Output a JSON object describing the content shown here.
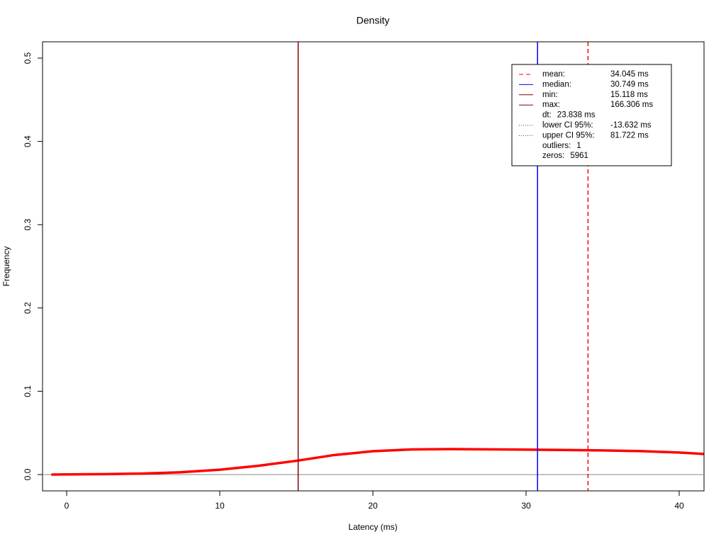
{
  "chart_data": {
    "type": "line",
    "title": "Density",
    "x_label": "Latency (ms)",
    "y_label": "Frequency",
    "xlim": [
      -1.574,
      41.62
    ],
    "ylim": [
      -0.0196,
      0.5196
    ],
    "xticks": [
      0,
      10,
      20,
      30,
      40
    ],
    "yticks": [
      {
        "value": 0,
        "label": "0.0"
      },
      0.1,
      0.2,
      0.3,
      0.4,
      0.5
    ],
    "baseline": 0,
    "x": [
      -1,
      0,
      2.5,
      5,
      7.5,
      10,
      12.5,
      15,
      17.5,
      20,
      22.5,
      25,
      27.5,
      30,
      32.5,
      35,
      37.5,
      40,
      41.6
    ],
    "series": [
      {
        "name": "density",
        "color": "#ff0000",
        "values": [
          0.0,
          0.0002,
          0.0005,
          0.0012,
          0.0028,
          0.0058,
          0.0105,
          0.0165,
          0.0235,
          0.028,
          0.0302,
          0.0306,
          0.0303,
          0.0299,
          0.0295,
          0.029,
          0.0281,
          0.0264,
          0.0247
        ]
      }
    ],
    "markers": [
      {
        "name": "mean:",
        "value": 34.045,
        "value_label": "34.045 ms",
        "color": "#ff0000",
        "style": "dashed"
      },
      {
        "name": "median:",
        "value": 30.749,
        "value_label": "30.749 ms",
        "color": "#0000ff",
        "style": "solid"
      },
      {
        "name": "min:",
        "value": 15.118,
        "value_label": "15.118 ms",
        "color": "#8b0000",
        "style": "solid"
      },
      {
        "name": "max:",
        "value": 166.306,
        "value_label": "166.306 ms",
        "color": "#8b0000",
        "style": "solid"
      }
    ],
    "legend_extra": [
      {
        "name": "dt:",
        "value_label": "23.838 ms"
      },
      {
        "name": "lower CI 95%:",
        "value_label": "-13.632 ms",
        "color": "#006400",
        "style": "dotted"
      },
      {
        "name": "upper CI 95%:",
        "value_label": "81.722 ms",
        "color": "#006400",
        "style": "dotted"
      },
      {
        "name": "outliers:",
        "value_label": "1"
      },
      {
        "name": "zeros:",
        "value_label": "5961"
      }
    ]
  }
}
